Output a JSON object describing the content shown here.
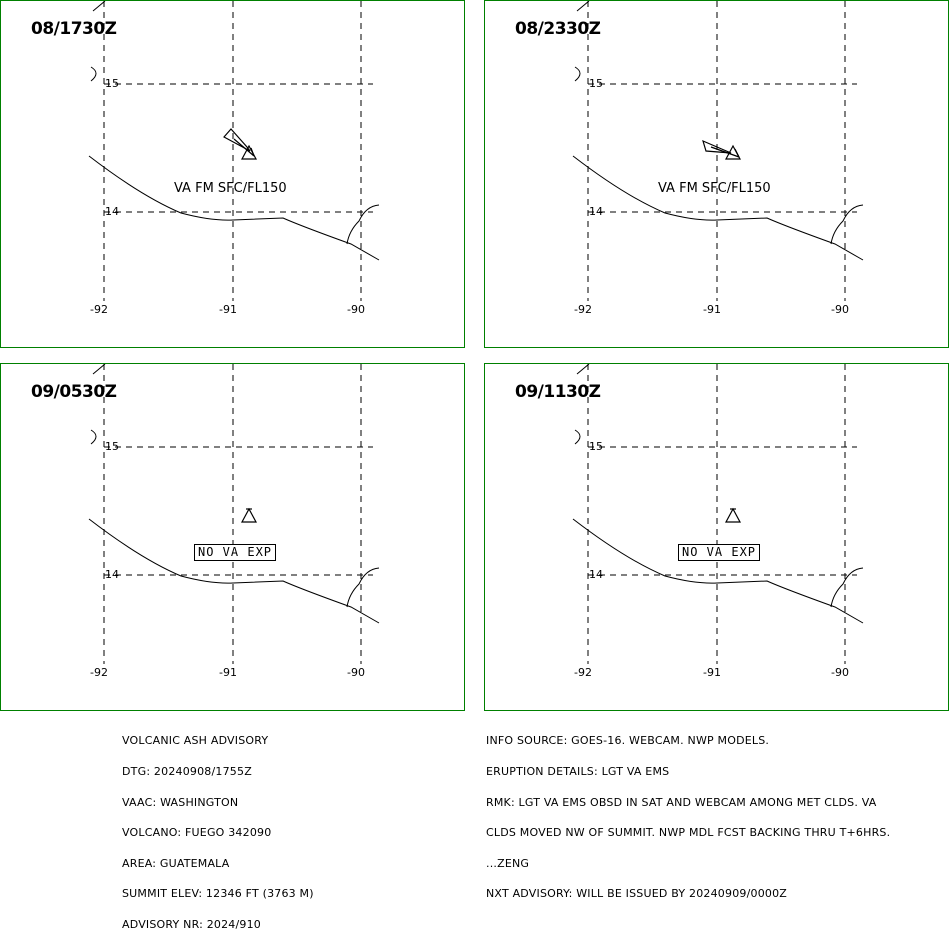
{
  "panels": [
    {
      "time": "08/1730Z",
      "label": "VA FM SFC/FL150",
      "label_type": "ash"
    },
    {
      "time": "08/2330Z",
      "label": "VA FM SFC/FL150",
      "label_type": "ash"
    },
    {
      "time": "09/0530Z",
      "label": "NO VA EXP",
      "label_type": "box"
    },
    {
      "time": "09/1130Z",
      "label": "NO VA EXP",
      "label_type": "box"
    }
  ],
  "grid": {
    "lat_labels": [
      "15",
      "14"
    ],
    "lon_labels": [
      "-92",
      "-91",
      "-90"
    ]
  },
  "advisory_left": [
    "VOLCANIC ASH ADVISORY",
    "DTG: 20240908/1755Z",
    "VAAC: WASHINGTON",
    "VOLCANO: FUEGO 342090",
    "AREA: GUATEMALA",
    "SUMMIT ELEV: 12346 FT (3763 M)",
    "ADVISORY NR: 2024/910"
  ],
  "advisory_right": [
    "INFO SOURCE: GOES-16. WEBCAM. NWP MODELS.",
    "ERUPTION DETAILS: LGT VA EMS",
    "RMK: LGT VA EMS OBSD IN SAT AND WEBCAM AMONG MET CLDS. VA",
    "CLDS MOVED NW OF SUMMIT. NWP MDL FCST BACKING THRU T+6HRS.",
    "...ZENG",
    "NXT ADVISORY: WILL BE ISSUED BY 20240909/0000Z"
  ],
  "colors": {
    "panel_border": "#008000",
    "map_lines": "#000000"
  }
}
